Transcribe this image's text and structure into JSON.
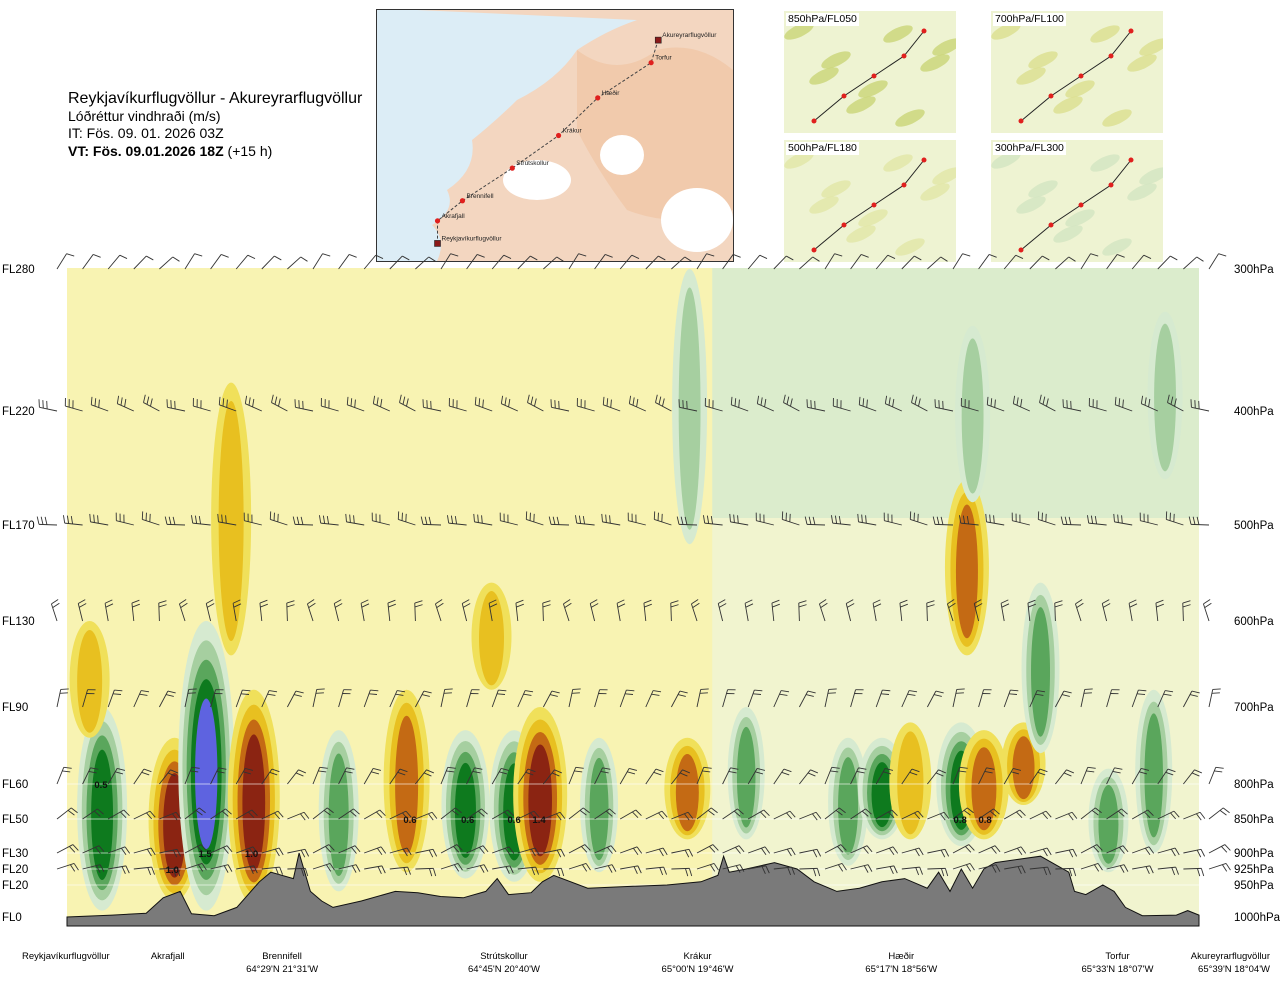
{
  "header": {
    "route_title": "Reykjavíkurflugvöllur - Akureyrarflugvöllur",
    "parameter": "Lóðréttur vindhraði (m/s)",
    "issue_time": "IT: Fös. 09. 01. 2026 03Z",
    "valid_time_bold": "VT: Fös. 09.01.2026 18Z",
    "valid_time_offset": " (+15 h)"
  },
  "route_map": {
    "waypoints": [
      {
        "name": "Akureyrarflugvöllur",
        "kind": "airport",
        "mx": 0.79,
        "my": 0.12
      },
      {
        "name": "Torfur",
        "kind": "point",
        "mx": 0.77,
        "my": 0.21
      },
      {
        "name": "Hæðir",
        "kind": "point",
        "mx": 0.62,
        "my": 0.35
      },
      {
        "name": "Krákur",
        "kind": "point",
        "mx": 0.51,
        "my": 0.5
      },
      {
        "name": "Strútskollur",
        "kind": "point",
        "mx": 0.38,
        "my": 0.63
      },
      {
        "name": "Brennifell",
        "kind": "point",
        "mx": 0.24,
        "my": 0.76
      },
      {
        "name": "Akrafjall",
        "kind": "point",
        "mx": 0.17,
        "my": 0.84
      },
      {
        "name": "Reykjavíkurflugvöllur",
        "kind": "airport",
        "mx": 0.17,
        "my": 0.93
      }
    ]
  },
  "mini_maps": [
    {
      "label": "850hPa/FL050",
      "tone": "#c5d06a"
    },
    {
      "label": "700hPa/FL100",
      "tone": "#d8dc84"
    },
    {
      "label": "500hPa/FL180",
      "tone": "#dfe49f"
    },
    {
      "label": "300hPa/FL300",
      "tone": "#cfe2bf"
    }
  ],
  "colors": {
    "strong_down": "#5e63e0",
    "down2": "#0e7a1e",
    "down1": "#5aa65c",
    "down05": "#a6cfa0",
    "neutral_dn": "#d6ead0",
    "neutral": "#f8f3b2",
    "up05": "#f0e05a",
    "up1": "#e8c020",
    "up2": "#c46a14",
    "strong_up": "#8b2412",
    "terrain": "#7a7a7a"
  },
  "chart_data": {
    "type": "heatmap",
    "title": "Reykjavíkurflugvöllur - Akureyrarflugvöllur",
    "subtitle": "Lóðréttur vindhraði (m/s)",
    "variable": "vertical velocity",
    "units": "m/s",
    "y_left_ticks": [
      "FL280",
      "FL220",
      "FL170",
      "FL130",
      "FL90",
      "FL60",
      "FL50",
      "FL30",
      "FL20",
      "FL20",
      "FL0"
    ],
    "y_right_ticks": [
      "300hPa",
      "400hPa",
      "500hPa",
      "600hPa",
      "700hPa",
      "800hPa",
      "850hPa",
      "900hPa",
      "925hPa",
      "950hPa",
      "1000hPa"
    ],
    "pressure_levels_hPa": [
      300,
      400,
      500,
      600,
      700,
      800,
      850,
      900,
      925,
      950,
      1000
    ],
    "x_waypoints": [
      {
        "name": "Reykjavíkurflugvöllur",
        "coord": "",
        "pos": 0.0
      },
      {
        "name": "Akrafjall",
        "coord": "",
        "pos": 0.089
      },
      {
        "name": "Brennifell",
        "coord": "64°29'N 21°31'W",
        "pos": 0.19
      },
      {
        "name": "Strútskollur",
        "coord": "64°45'N 20°40'W",
        "pos": 0.386
      },
      {
        "name": "Krákur",
        "coord": "65°00'N 19°46'W",
        "pos": 0.557
      },
      {
        "name": "Hæðir",
        "coord": "65°17'N 18°56'W",
        "pos": 0.737
      },
      {
        "name": "Torfur",
        "coord": "65°33'N 18°07'W",
        "pos": 0.928
      },
      {
        "name": "Akureyrarflugvöllur",
        "coord": "65°39'N 18°04'W",
        "pos": 1.0
      }
    ],
    "annotations": [
      {
        "text": "0.5",
        "pos": 0.03,
        "level_hPa": 800
      },
      {
        "text": "1.0",
        "pos": 0.093,
        "level_hPa": 925
      },
      {
        "text": "1.5",
        "pos": 0.122,
        "level_hPa": 900
      },
      {
        "text": "1.0",
        "pos": 0.163,
        "level_hPa": 900
      },
      {
        "text": "0.6",
        "pos": 0.303,
        "level_hPa": 850
      },
      {
        "text": "0.6",
        "pos": 0.354,
        "level_hPa": 850
      },
      {
        "text": "0.6",
        "pos": 0.395,
        "level_hPa": 850
      },
      {
        "text": "1.4",
        "pos": 0.417,
        "level_hPa": 850
      },
      {
        "text": "0.8",
        "pos": 0.789,
        "level_hPa": 850
      },
      {
        "text": "0.8",
        "pos": 0.811,
        "level_hPa": 850
      }
    ],
    "cells": [
      {
        "pos": 0.031,
        "p_top": 700,
        "p_bot": 990,
        "w": -2.2
      },
      {
        "pos": 0.02,
        "p_top": 600,
        "p_bot": 740,
        "w": 1.2
      },
      {
        "pos": 0.095,
        "p_top": 740,
        "p_bot": 975,
        "w": 2.4
      },
      {
        "pos": 0.123,
        "p_top": 600,
        "p_bot": 990,
        "w": -2.8
      },
      {
        "pos": 0.165,
        "p_top": 680,
        "p_bot": 980,
        "w": 2.4
      },
      {
        "pos": 0.145,
        "p_top": 380,
        "p_bot": 640,
        "w": 1.2
      },
      {
        "pos": 0.24,
        "p_top": 730,
        "p_bot": 960,
        "w": -1.2
      },
      {
        "pos": 0.3,
        "p_top": 680,
        "p_bot": 930,
        "w": 1.8
      },
      {
        "pos": 0.352,
        "p_top": 730,
        "p_bot": 940,
        "w": -2.0
      },
      {
        "pos": 0.395,
        "p_top": 730,
        "p_bot": 945,
        "w": -2.2
      },
      {
        "pos": 0.418,
        "p_top": 700,
        "p_bot": 945,
        "w": 2.6
      },
      {
        "pos": 0.375,
        "p_top": 560,
        "p_bot": 680,
        "w": 1.2
      },
      {
        "pos": 0.47,
        "p_top": 740,
        "p_bot": 930,
        "w": -1.0
      },
      {
        "pos": 0.548,
        "p_top": 740,
        "p_bot": 880,
        "w": 1.8
      },
      {
        "pos": 0.6,
        "p_top": 700,
        "p_bot": 880,
        "w": -0.9
      },
      {
        "pos": 0.69,
        "p_top": 740,
        "p_bot": 920,
        "w": -1.2
      },
      {
        "pos": 0.72,
        "p_top": 740,
        "p_bot": 880,
        "w": -2.0
      },
      {
        "pos": 0.745,
        "p_top": 720,
        "p_bot": 880,
        "w": 1.4
      },
      {
        "pos": 0.79,
        "p_top": 720,
        "p_bot": 890,
        "w": -2.2
      },
      {
        "pos": 0.81,
        "p_top": 730,
        "p_bot": 880,
        "w": 2.2
      },
      {
        "pos": 0.845,
        "p_top": 720,
        "p_bot": 830,
        "w": 1.6
      },
      {
        "pos": 0.795,
        "p_top": 460,
        "p_bot": 640,
        "w": 1.6
      },
      {
        "pos": 0.86,
        "p_top": 560,
        "p_bot": 760,
        "w": -1.0
      },
      {
        "pos": 0.92,
        "p_top": 780,
        "p_bot": 930,
        "w": -1.2
      },
      {
        "pos": 0.96,
        "p_top": 680,
        "p_bot": 900,
        "w": -0.9
      },
      {
        "pos": 0.55,
        "p_top": 300,
        "p_bot": 520,
        "w": -0.7
      },
      {
        "pos": 0.8,
        "p_top": 340,
        "p_bot": 480,
        "w": -0.7
      },
      {
        "pos": 0.97,
        "p_top": 330,
        "p_bot": 460,
        "w": -0.7
      }
    ],
    "wind_rows": [
      {
        "level_hPa": 300,
        "count": 46,
        "dir_deg": 40,
        "barbs": 1
      },
      {
        "level_hPa": 400,
        "count": 46,
        "dir_deg": 290,
        "barbs": 3
      },
      {
        "level_hPa": 500,
        "count": 46,
        "dir_deg": 280,
        "barbs": 3
      },
      {
        "level_hPa": 600,
        "count": 46,
        "dir_deg": 350,
        "barbs": 2
      },
      {
        "level_hPa": 700,
        "count": 46,
        "dir_deg": 20,
        "barbs": 2
      },
      {
        "level_hPa": 800,
        "count": 46,
        "dir_deg": 30,
        "barbs": 2
      },
      {
        "level_hPa": 850,
        "count": 46,
        "dir_deg": 60,
        "barbs": 2
      },
      {
        "level_hPa": 900,
        "count": 46,
        "dir_deg": 70,
        "barbs": 2
      },
      {
        "level_hPa": 925,
        "count": 46,
        "dir_deg": 80,
        "barbs": 2
      }
    ],
    "terrain_profile_hPa": [
      [
        0.0,
        1000
      ],
      [
        0.04,
        997
      ],
      [
        0.07,
        994
      ],
      [
        0.085,
        970
      ],
      [
        0.1,
        960
      ],
      [
        0.11,
        995
      ],
      [
        0.13,
        998
      ],
      [
        0.15,
        985
      ],
      [
        0.17,
        945
      ],
      [
        0.18,
        930
      ],
      [
        0.2,
        940
      ],
      [
        0.205,
        900
      ],
      [
        0.215,
        960
      ],
      [
        0.225,
        975
      ],
      [
        0.235,
        985
      ],
      [
        0.26,
        975
      ],
      [
        0.29,
        960
      ],
      [
        0.31,
        962
      ],
      [
        0.33,
        968
      ],
      [
        0.35,
        970
      ],
      [
        0.37,
        960
      ],
      [
        0.38,
        940
      ],
      [
        0.39,
        965
      ],
      [
        0.41,
        962
      ],
      [
        0.42,
        945
      ],
      [
        0.43,
        935
      ],
      [
        0.46,
        955
      ],
      [
        0.5,
        952
      ],
      [
        0.53,
        950
      ],
      [
        0.56,
        945
      ],
      [
        0.575,
        935
      ],
      [
        0.58,
        905
      ],
      [
        0.585,
        930
      ],
      [
        0.6,
        925
      ],
      [
        0.625,
        915
      ],
      [
        0.645,
        925
      ],
      [
        0.66,
        945
      ],
      [
        0.68,
        960
      ],
      [
        0.7,
        955
      ],
      [
        0.72,
        945
      ],
      [
        0.74,
        940
      ],
      [
        0.76,
        955
      ],
      [
        0.77,
        930
      ],
      [
        0.78,
        960
      ],
      [
        0.79,
        925
      ],
      [
        0.8,
        955
      ],
      [
        0.81,
        925
      ],
      [
        0.82,
        915
      ],
      [
        0.84,
        910
      ],
      [
        0.86,
        905
      ],
      [
        0.875,
        920
      ],
      [
        0.885,
        930
      ],
      [
        0.89,
        960
      ],
      [
        0.9,
        965
      ],
      [
        0.915,
        950
      ],
      [
        0.925,
        960
      ],
      [
        0.935,
        985
      ],
      [
        0.95,
        998
      ],
      [
        0.98,
        997
      ],
      [
        0.99,
        990
      ],
      [
        1.0,
        997
      ]
    ]
  },
  "bottom_labels": [
    {
      "name": "Reykjavíkurflugvöllur",
      "coord": ""
    },
    {
      "name": "Akrafjall",
      "coord": ""
    },
    {
      "name": "Brennifell",
      "coord": "64°29'N 21°31'W"
    },
    {
      "name": "Strútskollur",
      "coord": "64°45'N 20°40'W"
    },
    {
      "name": "Krákur",
      "coord": "65°00'N 19°46'W"
    },
    {
      "name": "Hæðir",
      "coord": "65°17'N 18°56'W"
    },
    {
      "name": "Torfur",
      "coord": "65°33'N 18°07'W"
    },
    {
      "name": "Akureyrarflugvöllur",
      "coord": "65°39'N 18°04'W"
    }
  ]
}
